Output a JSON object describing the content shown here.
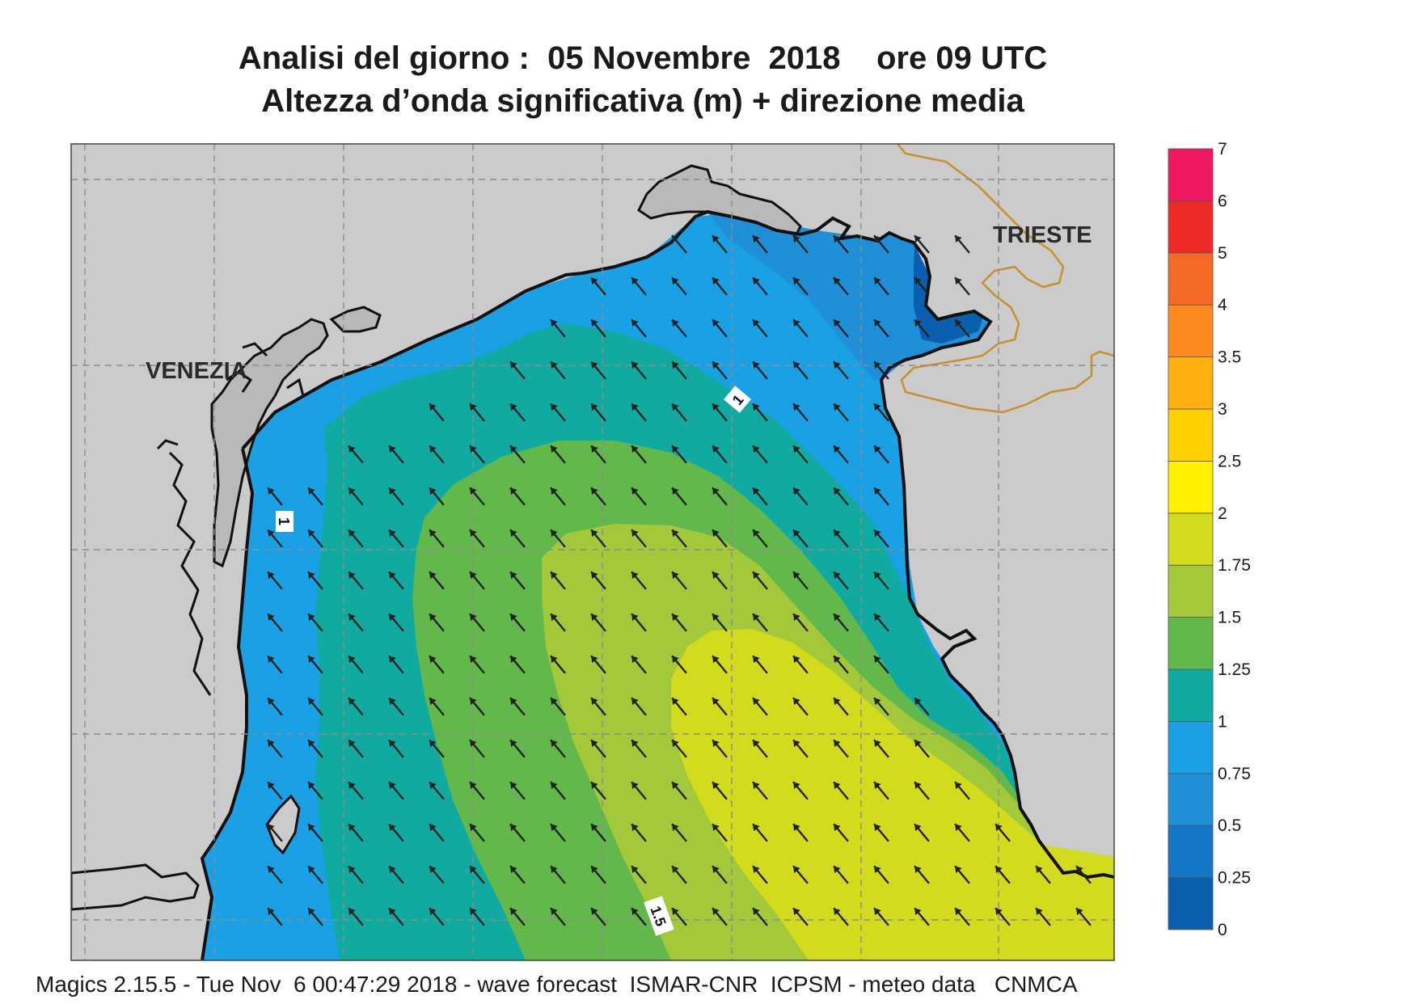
{
  "title_line1": "Analisi del giorno :  05 Novembre  2018    ore 09 UTC",
  "title_line2": "Altezza d’onda significativa (m) + direzione media",
  "footer": "Magics 2.15.5 - Tue Nov  6 00:47:29 2018 - wave forecast  ISMAR-CNR  ICPSM - meteo data   CNMCA",
  "cities": [
    {
      "name": "VENEZIA"
    },
    {
      "name": "TRIESTE"
    }
  ],
  "contour_labels": [
    "1",
    "1",
    "1.5"
  ],
  "colorbar": {
    "levels": [
      "0",
      "0.25",
      "0.5",
      "0.75",
      "1",
      "1.25",
      "1.5",
      "1.75",
      "2",
      "2.5",
      "3",
      "3.5",
      "4",
      "5",
      "6",
      "7"
    ],
    "colors": [
      "#0a5fae",
      "#1476c6",
      "#1f8fd8",
      "#1aa0e4",
      "#10aaa0",
      "#62b84a",
      "#a3c93a",
      "#d2db1c",
      "#fff000",
      "#ffd000",
      "#ffaf10",
      "#fc8a1e",
      "#f46a24",
      "#ee2a28",
      "#f01860"
    ]
  },
  "map_colors": {
    "land": "#cbcbcb",
    "coast": "#111111",
    "border": "#c8902a",
    "arrow": "#222222"
  },
  "wave_direction": "north-west"
}
